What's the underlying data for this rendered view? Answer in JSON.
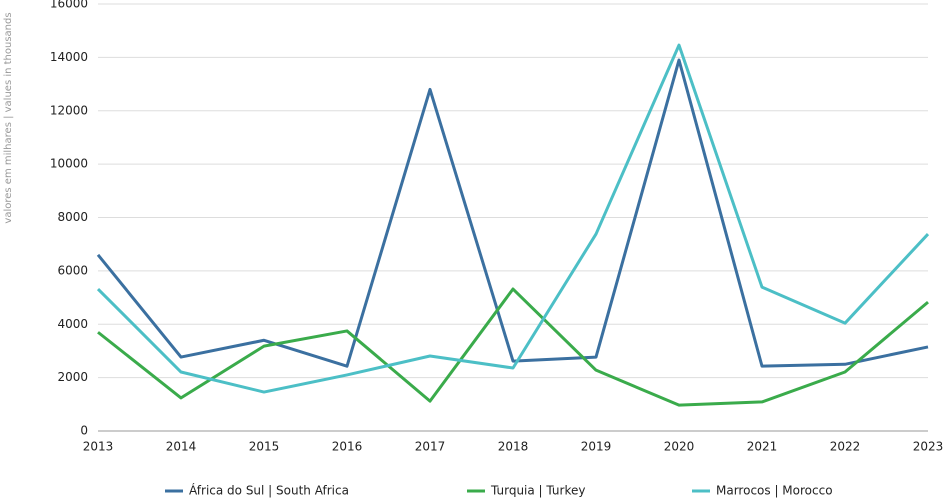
{
  "chart_data": {
    "type": "line",
    "y_axis_label": "valores em milhares | values in thousands",
    "categories": [
      "2013",
      "2014",
      "2015",
      "2016",
      "2017",
      "2018",
      "2019",
      "2020",
      "2021",
      "2022",
      "2023"
    ],
    "series": [
      {
        "name": "África do Sul | South Africa",
        "color": "#3b70a0",
        "values": [
          6600,
          2770,
          3400,
          2430,
          12800,
          2620,
          2770,
          13900,
          2430,
          2500,
          3150
        ]
      },
      {
        "name": "Turquia | Turkey",
        "color": "#3aab4b",
        "values": [
          3700,
          1240,
          3180,
          3750,
          1120,
          5320,
          2280,
          970,
          1090,
          2210,
          4830
        ]
      },
      {
        "name": "Marrocos | Morocco",
        "color": "#4cbfc6",
        "values": [
          5320,
          2210,
          1460,
          2100,
          2810,
          2360,
          7380,
          14460,
          5390,
          4040,
          7380
        ]
      }
    ],
    "ylim": [
      0,
      16000
    ],
    "yticks": [
      0,
      2000,
      4000,
      6000,
      8000,
      10000,
      12000,
      14000,
      16000
    ],
    "grid": true,
    "legend": "bottom"
  }
}
